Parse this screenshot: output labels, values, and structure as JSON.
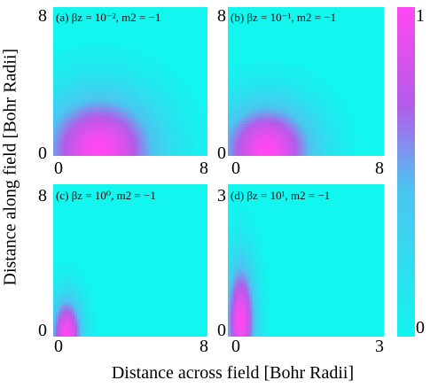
{
  "chart_data": {
    "type": "heatmap",
    "xlabel": "Distance across field [Bohr Radii]",
    "ylabel": "Distance along field [Bohr Radii]",
    "colorbar": {
      "min": 0,
      "max": 1,
      "tick_labels": [
        "1",
        "0"
      ],
      "colors": [
        "#13f5ef",
        "#ff48f2"
      ]
    },
    "panels": [
      {
        "label": "(a) $\\beta_z = 10^{-2}, m_2 = -1$",
        "title_text": "(a) βz = 10⁻², m2 = −1",
        "xlim": [
          0,
          8
        ],
        "ylim": [
          0,
          8
        ],
        "x_ticks": [
          "0",
          "8"
        ],
        "y_ticks": [
          "8",
          "0"
        ],
        "peak": {
          "x": 2.4,
          "y": 0.3,
          "sx": 3.2,
          "sy": 3.2,
          "amp": 1.0
        }
      },
      {
        "label": "(b) $\\beta_z = 10^{-1}, m_2 = -1$",
        "title_text": "(b) βz = 10⁻¹, m2 = −1",
        "xlim": [
          0,
          8
        ],
        "ylim": [
          0,
          8
        ],
        "x_ticks": [
          "0",
          "8"
        ],
        "y_ticks": [
          "8",
          "0"
        ],
        "peak": {
          "x": 2.0,
          "y": 0.3,
          "sx": 2.6,
          "sy": 2.7,
          "amp": 1.0
        }
      },
      {
        "label": "(c) $\\beta_z = 10^{0}, m_2 = -1$",
        "title_text": "(c) βz = 10⁰, m2 = −1",
        "xlim": [
          0,
          8
        ],
        "ylim": [
          0,
          8
        ],
        "x_ticks": [
          "0",
          "8"
        ],
        "y_ticks": [
          "8",
          "0"
        ],
        "peak": {
          "x": 0.7,
          "y": 0.1,
          "sx": 0.85,
          "sy": 2.1,
          "amp": 1.0
        }
      },
      {
        "label": "(d) $\\beta_z = 10^{1}, m_2 = -1$",
        "title_text": "(d) βz = 10¹, m2 = −1",
        "xlim": [
          0,
          3
        ],
        "ylim": [
          0,
          3
        ],
        "x_ticks": [
          "0",
          "3"
        ],
        "y_ticks": [
          "3",
          "0"
        ],
        "peak": {
          "x": 0.25,
          "y": 0.3,
          "sx": 0.3,
          "sy": 1.25,
          "amp": 1.0
        }
      }
    ]
  }
}
